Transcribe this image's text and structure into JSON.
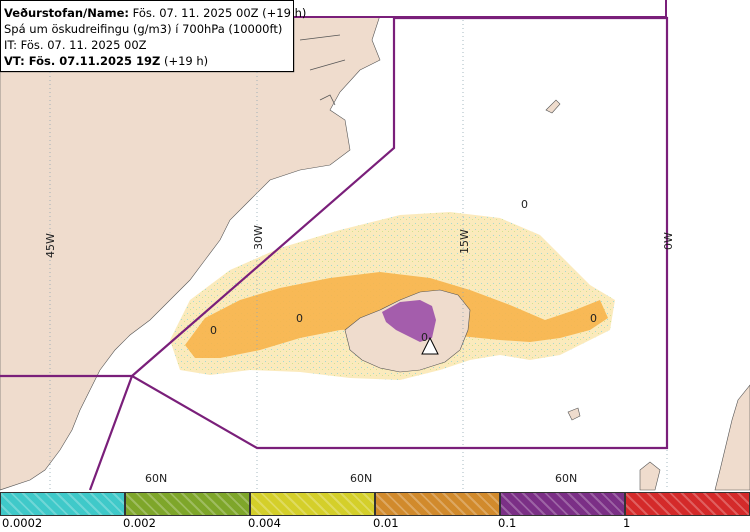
{
  "info": {
    "line1_label": "Veðurstofan/Name:",
    "line1_value": "Fös. 07. 11. 2025 00Z (+19 h)",
    "line2": "Spá um öskudreifingu (g/m3) í 700hPa (10000ft)",
    "line3": "IT: Fös. 07. 11. 2025 00Z",
    "line4_label": "VT: Fös. 07.11.2025 19Z",
    "line4_value": "(+19 h)"
  },
  "map_labels": {
    "lon_45w": "45W",
    "lon_30w": "30W",
    "lon_15w": "15W",
    "lon_0w": "0W",
    "lat_60n_a": "60N",
    "lat_60n_b": "60N",
    "lat_60n_c": "60N",
    "contour_zero": "0"
  },
  "legend": {
    "items": [
      {
        "color": "#3fc9c9",
        "label": "0.0002"
      },
      {
        "color": "#7ea62a",
        "label": "0.002"
      },
      {
        "color": "#d4cf2a",
        "label": "0.004"
      },
      {
        "color": "#d18a2c",
        "label": "0.01"
      },
      {
        "color": "#7b2f86",
        "label": "0.1"
      },
      {
        "color": "#d42a2a",
        "label": "1"
      }
    ]
  },
  "colors": {
    "land": "#efdccd",
    "sea": "#ffffff",
    "boundary": "#7a1f7a",
    "ash_light": "#f6dc9a",
    "ash_mid": "#f7b44a",
    "ash_high": "#9b4fa8"
  }
}
